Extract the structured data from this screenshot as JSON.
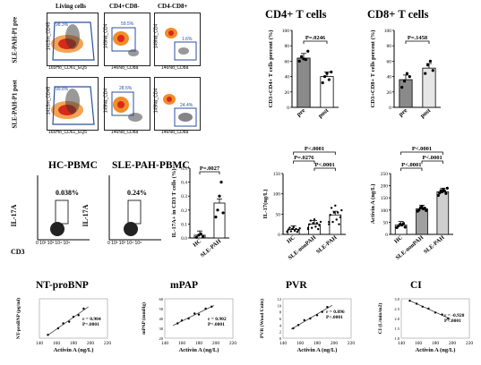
{
  "flow_top": {
    "col_headers": [
      "Living cells",
      "CD4+CD8-",
      "CD4-CD8+"
    ],
    "row_labels": [
      "SLE-PAH-P1 pre",
      "SLE-PAH-P1 post"
    ],
    "pre": {
      "living_gate": "98.3%",
      "cd4_gate": "59.5%",
      "cd8_gate": "1.6%",
      "x_axes": [
        "165Ho_CD61_EQ5",
        "146Nd_CD8a",
        "146Nd_CD8a"
      ],
      "y_axes": [
        "141Sm_CD45",
        "149Nd_CD4",
        "149Nd_CD4"
      ]
    },
    "post": {
      "living_gate": "99.8%",
      "cd4_gate": "28.5%",
      "cd8_gate": "24.4%",
      "x_axes": [
        "165Ho_CD61_EQ5",
        "146Nd_CD8a",
        "146Nd_CD8a"
      ],
      "y_axes": [
        "141Sm_CD45",
        "149Nd_CD4",
        "149Nd_CD4"
      ]
    }
  },
  "flow_il17": {
    "titles": [
      "HC-PBMC",
      "SLE-PAH-PBMC"
    ],
    "gates": [
      "0.038%",
      "0.24%"
    ],
    "ylabel": "IL-17A",
    "xlabel": "CD3",
    "ticks": [
      "0",
      "10²",
      "10³",
      "10⁴",
      "10⁵"
    ]
  },
  "chart_data": [
    {
      "type": "bar",
      "title": "CD4+ T cells",
      "ylabel": "CD3+CD4+ T cells percent (%)",
      "categories": [
        "pre",
        "post"
      ],
      "values": [
        64,
        40
      ],
      "points": [
        [
          60,
          66,
          63,
          62,
          73
        ],
        [
          32,
          40,
          44,
          36,
          46
        ]
      ],
      "ylim": [
        0,
        100
      ],
      "yticks": [
        "0",
        "20",
        "40",
        "60",
        "80",
        "100"
      ],
      "annotations": [
        "P=.0246"
      ],
      "colors": [
        "#8a8a8a",
        "#ffffff"
      ]
    },
    {
      "type": "bar",
      "title": "CD8+ T cells",
      "ylabel": "CD3+CD8+ T cells percent (%)",
      "categories": [
        "pre",
        "post"
      ],
      "values": [
        36,
        51
      ],
      "points": [
        [
          26,
          34,
          44,
          40
        ],
        [
          44,
          55,
          60,
          48
        ]
      ],
      "ylim": [
        0,
        100
      ],
      "yticks": [
        "0",
        "20",
        "40",
        "60",
        "80",
        "100"
      ],
      "annotations": [
        "P=.1458"
      ],
      "colors": [
        "#8a8a8a",
        "#e6e6e6"
      ]
    },
    {
      "type": "bar",
      "title": "",
      "ylabel": "IL-17A+ in CD3 T cells (%)",
      "categories": [
        "HC",
        "SLE-PAH"
      ],
      "values": [
        0.02,
        0.25
      ],
      "points": [
        [
          0.005,
          0.02,
          0.03,
          0.01
        ],
        [
          0.15,
          0.2,
          0.3,
          0.4,
          0.18
        ]
      ],
      "ylim": [
        0,
        0.5
      ],
      "yticks": [
        "0.0",
        "0.1",
        "0.2",
        "0.3",
        "0.4",
        "0.5"
      ],
      "annotations": [
        "P=.0027"
      ],
      "colors": [
        "#ffffff",
        "#ffffff"
      ]
    },
    {
      "type": "bar",
      "title": "",
      "ylabel": "IL-17(ng/L)",
      "categories": [
        "HC",
        "SLE-nonPAH",
        "SLE-PAH"
      ],
      "values": [
        12,
        25,
        48
      ],
      "ylim": [
        0,
        150
      ],
      "yticks": [
        "0",
        "50",
        "100",
        "150"
      ],
      "annotations": [
        "P<.0001",
        "P=.0276",
        "P<.0001"
      ],
      "colors": [
        "#ffffff",
        "#ffffff",
        "#ffffff"
      ]
    },
    {
      "type": "bar",
      "title": "",
      "ylabel": "Activin A (ng/L)",
      "categories": [
        "HC",
        "SLE-nonPAH",
        "SLE-PAH"
      ],
      "values": [
        38,
        105,
        175
      ],
      "points": [
        [
          28,
          35,
          42,
          38,
          45,
          30
        ],
        [
          95,
          100,
          110,
          115,
          105,
          108,
          98
        ],
        [
          160,
          170,
          180,
          175,
          185,
          178,
          168,
          190
        ]
      ],
      "ylim": [
        0,
        250
      ],
      "yticks": [
        "0",
        "50",
        "100",
        "150",
        "200",
        "250"
      ],
      "annotations": [
        "P<.0001",
        "P<.0001",
        "P<.0001"
      ],
      "colors": [
        "#ffffff",
        "#a0a0a0",
        "#cfcfcf"
      ]
    },
    {
      "type": "scatter",
      "title": "NT-proBNP",
      "ylabel": "NT-proBNP (pg/ml)",
      "xlabel": "Activin A (ng/L)",
      "xlim": [
        140,
        220
      ],
      "xticks": [
        "140",
        "160",
        "180",
        "200",
        "220"
      ],
      "points": [
        [
          150,
          1000
        ],
        [
          162,
          3000
        ],
        [
          168,
          4500
        ],
        [
          175,
          5000
        ],
        [
          180,
          6500
        ],
        [
          186,
          7000
        ],
        [
          192,
          9000
        ]
      ],
      "ylim": [
        0,
        12000
      ],
      "annotations": [
        "r = 0.904",
        "P=.0001"
      ]
    },
    {
      "type": "scatter",
      "title": "mPAP",
      "ylabel": "mPAP (mmHg)",
      "xlabel": "Activin A (ng/L)",
      "xlim": [
        140,
        220
      ],
      "xticks": [
        "140",
        "160",
        "180",
        "200",
        "220"
      ],
      "yticks": [
        "20",
        "30",
        "40",
        "50",
        "60"
      ],
      "points": [
        [
          155,
          35
        ],
        [
          160,
          38
        ],
        [
          168,
          40
        ],
        [
          175,
          45
        ],
        [
          180,
          44
        ],
        [
          188,
          50
        ],
        [
          195,
          52
        ]
      ],
      "ylim": [
        20,
        60
      ],
      "annotations": [
        "r = 0.902",
        "P=.0001"
      ]
    },
    {
      "type": "scatter",
      "title": "PVR",
      "ylabel": "PVR (Wood Units)",
      "xlabel": "Activin A (ng/L)",
      "xlim": [
        140,
        220
      ],
      "xticks": [
        "140",
        "160",
        "180",
        "200",
        "220"
      ],
      "yticks": [
        "0",
        "2",
        "4",
        "6",
        "8",
        "10",
        "12"
      ],
      "points": [
        [
          152,
          3
        ],
        [
          158,
          4
        ],
        [
          165,
          5.5
        ],
        [
          172,
          6
        ],
        [
          180,
          7
        ],
        [
          186,
          8
        ],
        [
          192,
          9.5
        ]
      ],
      "ylim": [
        0,
        12
      ],
      "annotations": [
        "r = 0.896",
        "P<.0001"
      ]
    },
    {
      "type": "scatter",
      "title": "CI",
      "ylabel": "CI (L/min/m2)",
      "xlabel": "Activin A (ng/L)",
      "xlim": [
        140,
        220
      ],
      "xticks": [
        "140",
        "160",
        "180",
        "200",
        "220"
      ],
      "yticks": [
        "1.0",
        "1.5",
        "2.0",
        "2.5",
        "3.0"
      ],
      "points": [
        [
          150,
          2.9
        ],
        [
          158,
          2.75
        ],
        [
          165,
          2.6
        ],
        [
          172,
          2.5
        ],
        [
          180,
          2.3
        ],
        [
          188,
          2.2
        ],
        [
          195,
          2.0
        ]
      ],
      "ylim": [
        1,
        3
      ],
      "annotations": [
        "r = -0.920",
        "P<.0001"
      ]
    }
  ]
}
